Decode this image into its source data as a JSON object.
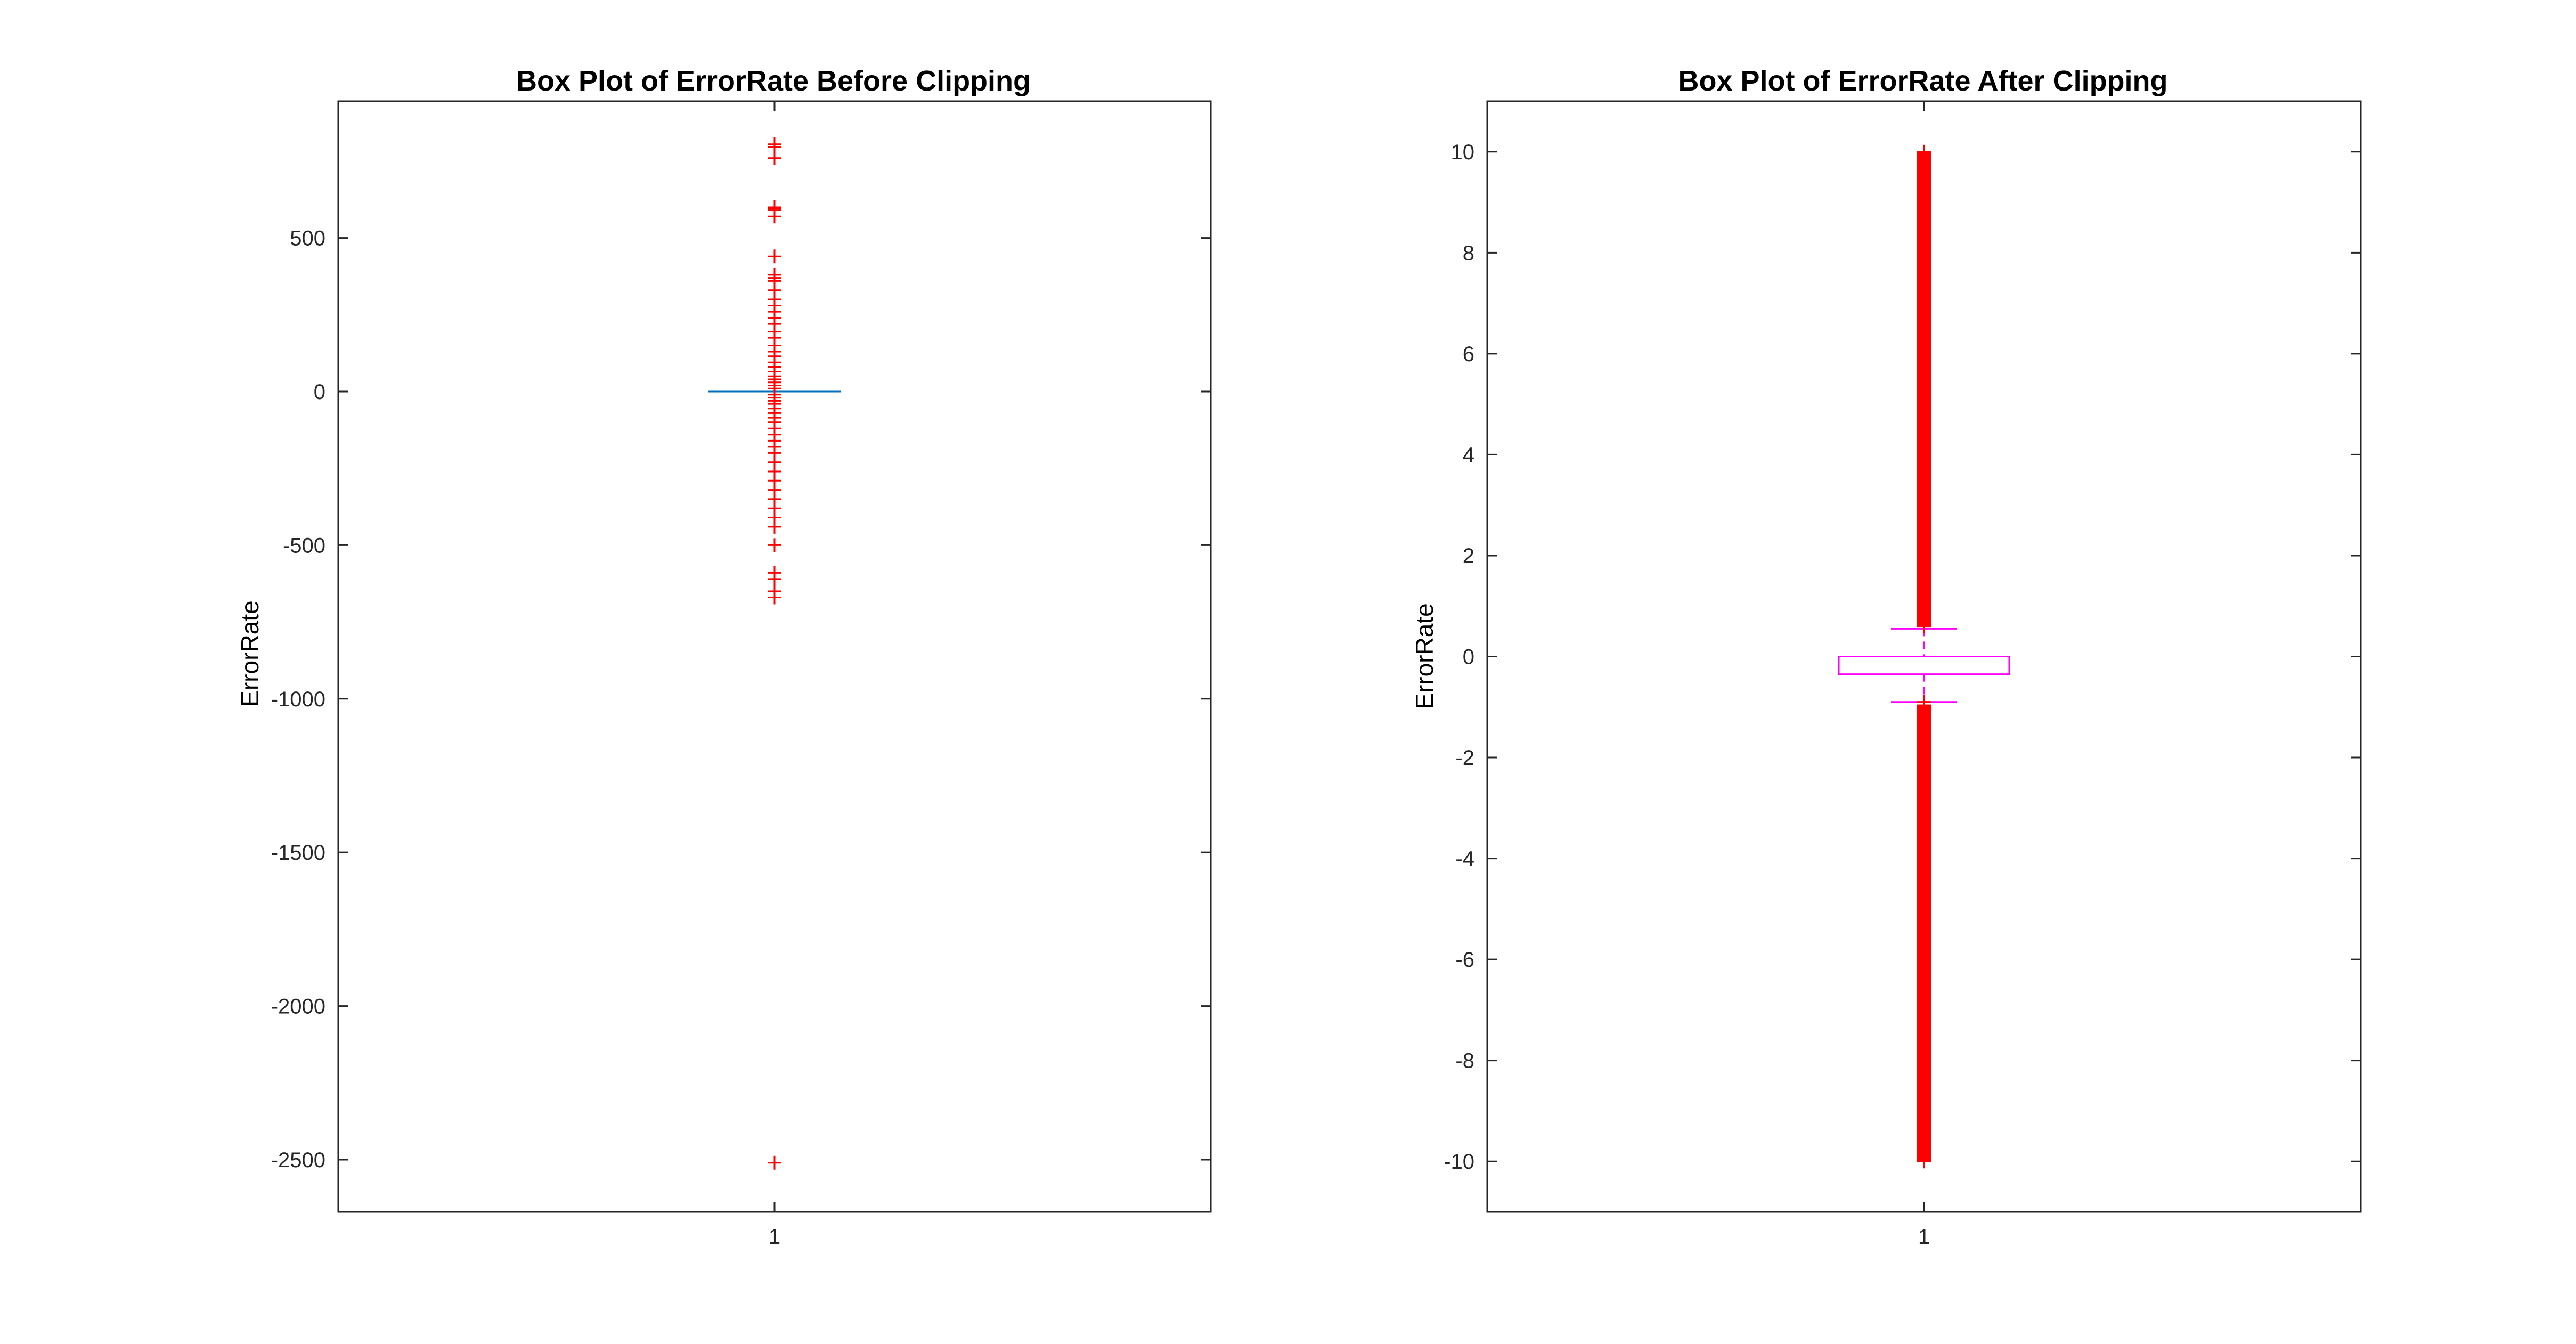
{
  "chart_data": [
    {
      "type": "box",
      "title": "Box Plot of ErrorRate Before Clipping",
      "ylabel": "ErrorRate",
      "xlabel": "",
      "categories": [
        "1"
      ],
      "ylim": [
        -2670,
        945
      ],
      "yticks": [
        500,
        0,
        -500,
        -1000,
        -1500,
        -2000,
        -2500
      ],
      "ytick_labels": [
        "500",
        "0",
        "-500",
        "-1000",
        "-1500",
        "-2000",
        "-2500"
      ],
      "grid": false,
      "colors": {
        "box": "#0072bd",
        "outlier": "#ff0000",
        "axes": "#262626"
      },
      "box": {
        "q1": -0.5,
        "median": 0,
        "q3": 0.5,
        "whisker_low": -1,
        "whisker_high": 1
      },
      "outliers": [
        805,
        795,
        760,
        600,
        595,
        590,
        570,
        440,
        380,
        370,
        360,
        330,
        300,
        280,
        260,
        240,
        220,
        195,
        175,
        150,
        130,
        115,
        95,
        80,
        65,
        50,
        40,
        30,
        20,
        10,
        -10,
        -20,
        -30,
        -40,
        -55,
        -70,
        -85,
        -100,
        -120,
        -140,
        -160,
        -180,
        -200,
        -230,
        -260,
        -290,
        -320,
        -350,
        -380,
        -410,
        -440,
        -500,
        -590,
        -610,
        -650,
        -670,
        -2510
      ]
    },
    {
      "type": "box",
      "title": "Box Plot of ErrorRate After Clipping",
      "ylabel": "ErrorRate",
      "xlabel": "",
      "categories": [
        "1"
      ],
      "ylim": [
        -11,
        11
      ],
      "yticks": [
        10,
        8,
        6,
        4,
        2,
        0,
        -2,
        -4,
        -6,
        -8,
        -10
      ],
      "ytick_labels": [
        "10",
        "8",
        "6",
        "4",
        "2",
        "0",
        "-2",
        "-4",
        "-6",
        "-8",
        "-10"
      ],
      "grid": false,
      "colors": {
        "box": "#ff00ff",
        "outlier": "#ff0000",
        "axes": "#262626"
      },
      "box": {
        "q1": -0.35,
        "median": 0,
        "q3": 0.0,
        "whisker_low": -0.9,
        "whisker_high": 0.55
      },
      "outliers": [
        10.0,
        9.9,
        9.8,
        9.6,
        9.4,
        9.2,
        9.0,
        8.8,
        8.6,
        8.4,
        8.2,
        8.0,
        7.8,
        7.6,
        7.35,
        7.3,
        7.2,
        7.0,
        6.8,
        6.6,
        6.4,
        6.2,
        6.0,
        5.8,
        5.6,
        5.4,
        5.2,
        5.0,
        4.8,
        4.6,
        4.4,
        4.2,
        4.0,
        3.8,
        3.6,
        3.4,
        3.2,
        3.0,
        2.8,
        2.6,
        2.4,
        2.2,
        2.0,
        1.8,
        1.6,
        1.4,
        1.2,
        1.0,
        0.8,
        0.6,
        -0.9,
        -1.0,
        -1.2,
        -1.4,
        -1.6,
        -1.8,
        -2.0,
        -2.2,
        -2.4,
        -2.6,
        -2.8,
        -3.0,
        -3.2,
        -3.4,
        -3.6,
        -3.8,
        -4.0,
        -4.2,
        -4.4,
        -4.6,
        -4.8,
        -5.0,
        -5.2,
        -5.4,
        -5.6,
        -5.8,
        -6.0,
        -6.2,
        -6.4,
        -6.6,
        -6.8,
        -7.0,
        -7.2,
        -7.4,
        -7.6,
        -7.8,
        -8.0,
        -8.2,
        -8.4,
        -8.6,
        -8.8,
        -9.0,
        -9.2,
        -9.4,
        -9.6,
        -9.8,
        -10.0
      ]
    }
  ]
}
